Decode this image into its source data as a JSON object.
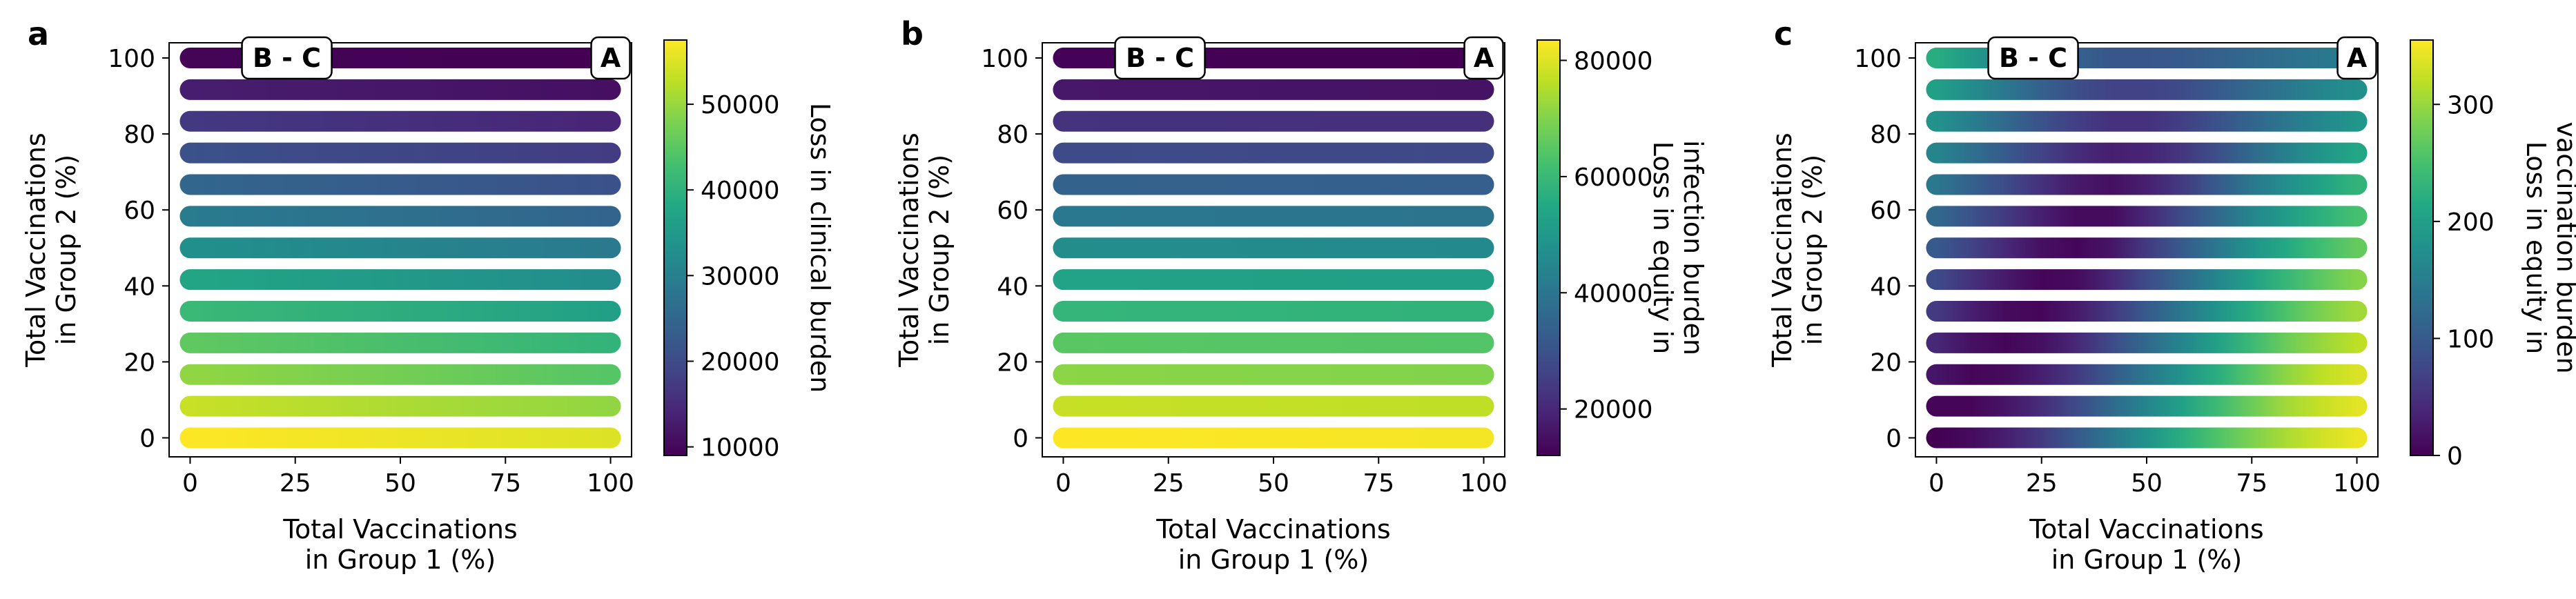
{
  "figure": {
    "panels": [
      "a",
      "b",
      "c"
    ]
  },
  "chart_data": [
    {
      "type": "scatter",
      "panel_label": "a",
      "xlabel": [
        "Total Vaccinations",
        "in Group 1 (%)"
      ],
      "ylabel": [
        "Total Vaccinations",
        "in Group 2 (%)"
      ],
      "xlim": [
        -5,
        105
      ],
      "ylim": [
        -5,
        104
      ],
      "xticks": [
        0,
        25,
        50,
        75,
        100
      ],
      "yticks": [
        0,
        20,
        40,
        60,
        80,
        100
      ],
      "rows_y": [
        0,
        8.33,
        16.67,
        25,
        33.33,
        41.67,
        50,
        58.33,
        66.67,
        75,
        83.33,
        91.67,
        100
      ],
      "x_points": [
        0,
        100
      ],
      "annotations": [
        {
          "text": "B - C",
          "x": 23,
          "y": 100
        },
        {
          "text": "A",
          "x": 100,
          "y": 100
        }
      ],
      "colormap": "viridis",
      "colorbar": {
        "label": [
          "Loss in clinical burden"
        ],
        "range": [
          9000,
          57500
        ],
        "ticks": [
          10000,
          20000,
          30000,
          40000,
          50000
        ],
        "tick_labels": [
          "10000",
          "20000",
          "30000",
          "40000",
          "50000"
        ]
      },
      "values": [
        [
          57500,
          55000
        ],
        [
          53500,
          49500
        ],
        [
          49500,
          44500
        ],
        [
          45500,
          40500
        ],
        [
          41500,
          36500
        ],
        [
          37500,
          32500
        ],
        [
          33000,
          28500
        ],
        [
          29000,
          24500
        ],
        [
          25000,
          21000
        ],
        [
          21000,
          17500
        ],
        [
          17000,
          14000
        ],
        [
          13000,
          11000
        ],
        [
          9500,
          9000
        ]
      ]
    },
    {
      "type": "scatter",
      "panel_label": "b",
      "xlabel": [
        "Total Vaccinations",
        "in Group 1 (%)"
      ],
      "ylabel": [
        "Total Vaccinations",
        "in Group 2 (%)"
      ],
      "xlim": [
        -5,
        105
      ],
      "ylim": [
        -5,
        104
      ],
      "xticks": [
        0,
        25,
        50,
        75,
        100
      ],
      "yticks": [
        0,
        20,
        40,
        60,
        80,
        100
      ],
      "rows_y": [
        0,
        8.33,
        16.67,
        25,
        33.33,
        41.67,
        50,
        58.33,
        66.67,
        75,
        83.33,
        91.67,
        100
      ],
      "x_points": [
        0,
        100
      ],
      "annotations": [
        {
          "text": "B - C",
          "x": 23,
          "y": 100
        },
        {
          "text": "A",
          "x": 100,
          "y": 100
        }
      ],
      "colormap": "viridis",
      "colorbar": {
        "label": [
          "Loss in equity in",
          "infection burden"
        ],
        "range": [
          12000,
          83500
        ],
        "ticks": [
          20000,
          40000,
          60000,
          80000
        ],
        "tick_labels": [
          "20000",
          "40000",
          "60000",
          "80000"
        ]
      },
      "values": [
        [
          83500,
          82500
        ],
        [
          77500,
          76500
        ],
        [
          71000,
          70000
        ],
        [
          65000,
          64000
        ],
        [
          59000,
          58000
        ],
        [
          53000,
          52000
        ],
        [
          46500,
          45500
        ],
        [
          40500,
          39500
        ],
        [
          34500,
          33500
        ],
        [
          28500,
          27500
        ],
        [
          22500,
          21500
        ],
        [
          16500,
          15500
        ],
        [
          12500,
          12000
        ]
      ]
    },
    {
      "type": "scatter",
      "panel_label": "c",
      "xlabel": [
        "Total Vaccinations",
        "in Group 1 (%)"
      ],
      "ylabel": [
        "Total Vaccinations",
        "in Group 2 (%)"
      ],
      "xlim": [
        -5,
        105
      ],
      "ylim": [
        -5,
        104
      ],
      "xticks": [
        0,
        25,
        50,
        75,
        100
      ],
      "yticks": [
        0,
        20,
        40,
        60,
        80,
        100
      ],
      "rows_y": [
        0,
        8.33,
        16.67,
        25,
        33.33,
        41.67,
        50,
        58.33,
        66.67,
        75,
        83.33,
        91.67,
        100
      ],
      "x_points": [
        0,
        8.33,
        16.67,
        25,
        33.33,
        41.67,
        50,
        58.33,
        66.67,
        75,
        83.33,
        91.67,
        100
      ],
      "annotations": [
        {
          "text": "B - C",
          "x": 23,
          "y": 100
        },
        {
          "text": "A",
          "x": 100,
          "y": 100
        }
      ],
      "colormap": "viridis",
      "colorbar": {
        "label": [
          "Loss in equity in",
          "vaccination burden"
        ],
        "range": [
          0,
          355
        ],
        "ticks": [
          0,
          100,
          200,
          300
        ],
        "tick_labels": [
          "0",
          "100",
          "200",
          "300"
        ]
      },
      "values": [
        [
          0,
          10,
          30,
          60,
          100,
          140,
          180,
          220,
          255,
          285,
          310,
          330,
          345
        ],
        [
          5,
          5,
          20,
          45,
          80,
          120,
          160,
          200,
          240,
          275,
          305,
          325,
          340
        ],
        [
          20,
          5,
          10,
          30,
          60,
          100,
          140,
          180,
          220,
          260,
          295,
          320,
          335
        ],
        [
          40,
          15,
          5,
          15,
          40,
          80,
          120,
          160,
          200,
          240,
          275,
          300,
          320
        ],
        [
          60,
          30,
          10,
          5,
          25,
          60,
          100,
          140,
          180,
          220,
          255,
          285,
          305
        ],
        [
          80,
          50,
          25,
          5,
          10,
          40,
          80,
          120,
          160,
          200,
          235,
          265,
          290
        ],
        [
          100,
          70,
          40,
          15,
          5,
          20,
          60,
          100,
          140,
          180,
          215,
          245,
          270
        ],
        [
          120,
          90,
          60,
          30,
          10,
          10,
          40,
          80,
          120,
          160,
          195,
          225,
          250
        ],
        [
          140,
          110,
          80,
          50,
          25,
          15,
          30,
          60,
          100,
          140,
          175,
          205,
          230
        ],
        [
          160,
          130,
          100,
          70,
          45,
          30,
          35,
          55,
          85,
          120,
          155,
          185,
          210
        ],
        [
          180,
          150,
          120,
          90,
          65,
          50,
          50,
          65,
          90,
          115,
          140,
          165,
          185
        ],
        [
          200,
          170,
          140,
          110,
          85,
          70,
          70,
          80,
          100,
          120,
          140,
          160,
          175
        ],
        [
          220,
          190,
          160,
          130,
          110,
          95,
          95,
          100,
          110,
          120,
          130,
          140,
          150
        ]
      ]
    }
  ]
}
